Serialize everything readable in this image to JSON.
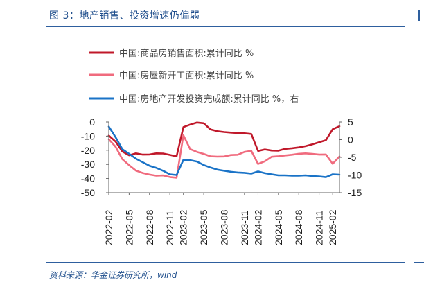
{
  "header": {
    "title": "图 3：地产销售、投资增速仍偏弱"
  },
  "footer": {
    "source": "资料来源：华金证券研究所，wind"
  },
  "chart_data": {
    "type": "line",
    "x": [
      "2022-02",
      "2022-03",
      "2022-04",
      "2022-05",
      "2022-06",
      "2022-07",
      "2022-08",
      "2022-09",
      "2022-10",
      "2022-11",
      "2022-12",
      "2023-02",
      "2023-03",
      "2023-04",
      "2023-05",
      "2023-06",
      "2023-07",
      "2023-08",
      "2023-09",
      "2023-10",
      "2023-11",
      "2023-12",
      "2024-02",
      "2024-03",
      "2024-04",
      "2024-05",
      "2024-06",
      "2024-07",
      "2024-08",
      "2024-09",
      "2024-10",
      "2024-11",
      "2024-12",
      "2025-02",
      "2025-03"
    ],
    "xticks": [
      "2022-02",
      "2022-05",
      "2022-08",
      "2022-11",
      "2023-02",
      "2023-05",
      "2023-08",
      "2023-11",
      "2024-02",
      "2024-05",
      "2024-08",
      "2024-11",
      "2025-02"
    ],
    "y_left": {
      "ticks": [
        "0",
        "-10",
        "-20",
        "-30",
        "-40",
        "-50"
      ],
      "ylim": [
        -50,
        0
      ]
    },
    "y_right": {
      "ticks": [
        "5",
        "0",
        "-5",
        "-10",
        "-15"
      ],
      "ylim": [
        -15,
        5
      ]
    },
    "series": [
      {
        "name": "中国:商品房销售面积:累计同比 %",
        "color": "#c0182a",
        "axis": "left",
        "values": [
          -9.6,
          -13.8,
          -20.9,
          -23.6,
          -22.2,
          -23.1,
          -23.0,
          -22.2,
          -22.3,
          -23.3,
          -24.3,
          -3.6,
          -1.8,
          -0.4,
          -0.9,
          -5.3,
          -6.5,
          -7.1,
          -7.5,
          -7.8,
          -8.0,
          -8.5,
          -20.5,
          -19.4,
          -20.2,
          -20.3,
          -19.0,
          -18.6,
          -18.0,
          -17.1,
          -15.8,
          -14.3,
          -12.9,
          -5.1,
          -3.0
        ]
      },
      {
        "name": "中国:房屋新开工面积:累计同比 %",
        "color": "#f06b7e",
        "axis": "left",
        "values": [
          -12.2,
          -17.5,
          -26.3,
          -30.6,
          -34.4,
          -36.1,
          -37.2,
          -38.0,
          -37.8,
          -38.9,
          -39.4,
          -9.4,
          -19.2,
          -21.2,
          -22.6,
          -24.3,
          -24.5,
          -24.4,
          -23.4,
          -23.2,
          -21.2,
          -20.4,
          -29.7,
          -27.8,
          -24.6,
          -24.2,
          -23.7,
          -23.2,
          -22.5,
          -22.2,
          -22.6,
          -23.1,
          -23.0,
          -29.6,
          -24.4
        ]
      },
      {
        "name": "中国:房地产开发投资完成额:累计同比 %，右",
        "color": "#1a73c7",
        "axis": "right",
        "values": [
          3.7,
          0.7,
          -2.7,
          -4.0,
          -5.4,
          -6.4,
          -7.4,
          -8.0,
          -8.8,
          -9.8,
          -10.0,
          -5.7,
          -5.8,
          -6.2,
          -7.2,
          -7.9,
          -8.5,
          -8.8,
          -9.1,
          -9.3,
          -9.4,
          -9.6,
          -9.0,
          -9.5,
          -9.8,
          -10.1,
          -10.1,
          -10.2,
          -10.2,
          -10.1,
          -10.3,
          -10.4,
          -10.6,
          -9.8,
          -9.9
        ]
      }
    ]
  }
}
